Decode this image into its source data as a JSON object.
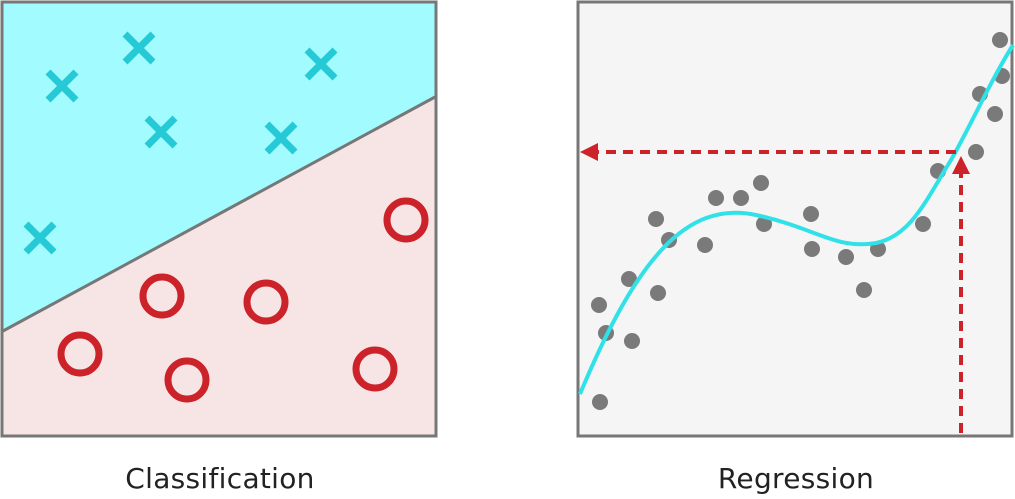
{
  "classification": {
    "label": "Classification",
    "colors": {
      "top_fill": "#a2fcff",
      "bottom_fill": "#f7e4e4",
      "border": "#777777",
      "cross": "#26c9d6",
      "circle": "#cc2229"
    },
    "crosses": [
      {
        "name": "cross-1"
      },
      {
        "name": "cross-2"
      },
      {
        "name": "cross-3"
      },
      {
        "name": "cross-4"
      },
      {
        "name": "cross-5"
      },
      {
        "name": "cross-6"
      }
    ],
    "circles": [
      {
        "name": "circle-1"
      },
      {
        "name": "circle-2"
      },
      {
        "name": "circle-3"
      },
      {
        "name": "circle-4"
      },
      {
        "name": "circle-5"
      },
      {
        "name": "circle-6"
      }
    ]
  },
  "regression": {
    "label": "Regression",
    "colors": {
      "background": "#f5f5f5",
      "border": "#777777",
      "point": "#7a7a7a",
      "curve": "#30e2e8",
      "arrow": "#cc2229"
    }
  }
}
